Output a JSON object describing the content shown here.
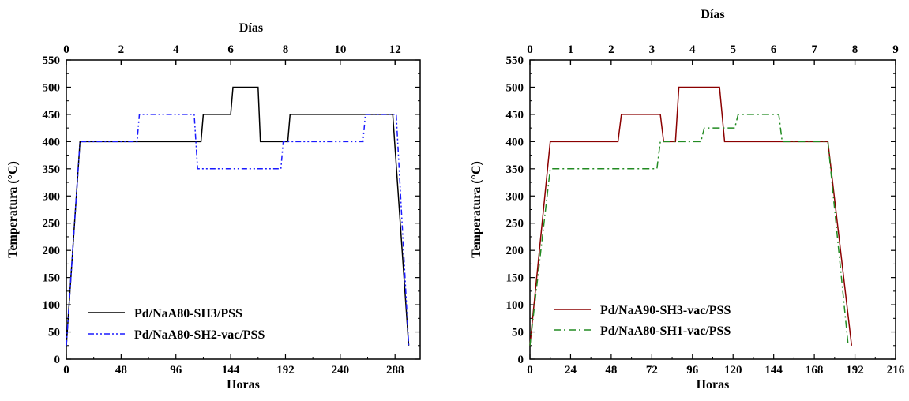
{
  "chart_data": [
    {
      "type": "line",
      "xlabel": "Horas",
      "ylabel": "Temperatura (°C)",
      "x2label": "Días",
      "xlim": [
        0,
        310
      ],
      "ylim": [
        0,
        550
      ],
      "x2lim": [
        0,
        12.917
      ],
      "xticks": [
        0,
        48,
        96,
        144,
        192,
        240,
        288
      ],
      "x2ticks": [
        0,
        2,
        4,
        6,
        8,
        10,
        12
      ],
      "yticks": [
        0,
        50,
        100,
        150,
        200,
        250,
        300,
        350,
        400,
        450,
        500,
        550
      ],
      "legend_position": "bottom-left",
      "series": [
        {
          "name": "Pd/NaA80-SH3/PSS",
          "color": "#000000",
          "dash": "solid",
          "x": [
            0,
            12,
            118,
            120,
            144,
            146,
            168,
            170,
            194,
            196,
            286,
            300
          ],
          "y": [
            25,
            400,
            400,
            450,
            450,
            500,
            500,
            400,
            400,
            450,
            450,
            25
          ]
        },
        {
          "name": "Pd/NaA80-SH2-vac/PSS",
          "color": "#1a1aff",
          "dash": "dashdotdot",
          "x": [
            0,
            12,
            62,
            64,
            112,
            115,
            188,
            190,
            260,
            262,
            289,
            300
          ],
          "y": [
            25,
            400,
            400,
            450,
            450,
            350,
            350,
            400,
            400,
            450,
            450,
            25
          ]
        }
      ]
    },
    {
      "type": "line",
      "xlabel": "Horas",
      "ylabel": "Temperatura (°C)",
      "x2label": "Días",
      "xlim": [
        0,
        216
      ],
      "ylim": [
        0,
        550
      ],
      "x2lim": [
        0,
        9
      ],
      "xticks": [
        0,
        24,
        48,
        72,
        96,
        120,
        144,
        168,
        192,
        216
      ],
      "x2ticks": [
        0,
        1,
        2,
        3,
        4,
        5,
        6,
        7,
        8,
        9
      ],
      "yticks": [
        0,
        50,
        100,
        150,
        200,
        250,
        300,
        350,
        400,
        450,
        500,
        550
      ],
      "legend_position": "bottom-left",
      "series": [
        {
          "name": "Pd/NaA90-SH3-vac/PSS",
          "color": "#8b0000",
          "dash": "solid",
          "x": [
            0,
            12,
            52,
            54,
            77,
            79,
            86,
            88,
            112,
            115,
            176,
            190
          ],
          "y": [
            25,
            400,
            400,
            450,
            450,
            400,
            400,
            500,
            500,
            400,
            400,
            25
          ]
        },
        {
          "name": "Pd/NaA80-SH1-vac/PSS",
          "color": "#228b22",
          "dash": "dashdot",
          "x": [
            0,
            12,
            75,
            77,
            101,
            103,
            121,
            123,
            147,
            149,
            176,
            188
          ],
          "y": [
            25,
            350,
            350,
            400,
            400,
            425,
            425,
            450,
            450,
            400,
            400,
            25
          ]
        }
      ]
    }
  ]
}
